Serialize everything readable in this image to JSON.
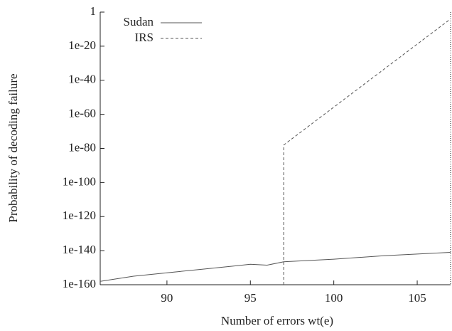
{
  "chart_data": {
    "type": "line",
    "xlabel": "Number of errors wt(e)",
    "ylabel": "Probability of decoding failure",
    "xlim": [
      86,
      107
    ],
    "xticks": [
      90,
      95,
      100,
      105
    ],
    "ylim": [
      1e-160,
      1
    ],
    "yticks": [
      1e-160,
      1e-140,
      1e-120,
      1e-100,
      1e-80,
      1e-60,
      1e-40,
      1e-20,
      1
    ],
    "yscale": "log",
    "legend": "upper left",
    "series": [
      {
        "name": "Sudan",
        "color": "#555555",
        "style": "solid",
        "x": [
          86,
          88,
          90,
          92,
          94,
          95,
          96,
          97,
          100,
          103,
          105,
          107
        ],
        "values": [
          1e-158,
          1e-155,
          1e-153,
          1e-151,
          1e-149,
          1e-148,
          3e-149,
          3e-147,
          1e-145,
          1e-143,
          1e-142,
          1e-141
        ]
      },
      {
        "name": "IRS",
        "color": "#555555",
        "style": "dashed",
        "x": [
          97,
          97,
          107
        ],
        "values": [
          1e-160,
          1e-78,
          0.0001
        ]
      }
    ]
  }
}
